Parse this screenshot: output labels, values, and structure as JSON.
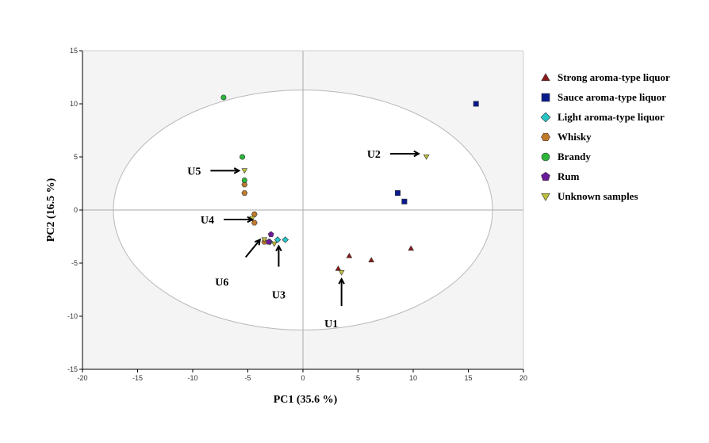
{
  "chart_data": {
    "type": "scatter",
    "title": "",
    "xlabel": "PC1 (35.6 %)",
    "ylabel": "PC2 (16.5 %)",
    "xlim": [
      -20,
      20
    ],
    "ylim": [
      -15,
      15
    ],
    "x_ticks": [
      -20,
      -15,
      -10,
      -5,
      0,
      5,
      10,
      15,
      20
    ],
    "y_ticks": [
      -15,
      -10,
      -5,
      0,
      5,
      10,
      15
    ],
    "grid": false,
    "legend_position": "right",
    "confidence_ellipse": {
      "center": [
        0,
        0
      ],
      "radii": [
        17.2,
        11.3
      ]
    },
    "series": [
      {
        "name": "Strong aroma-type liquor",
        "marker": "triangle-up",
        "color": "#8b1a1a",
        "points": [
          [
            3.2,
            -5.5
          ],
          [
            4.2,
            -4.3
          ],
          [
            6.2,
            -4.7
          ],
          [
            9.8,
            -3.6
          ]
        ]
      },
      {
        "name": "Sauce aroma-type liquor",
        "marker": "square",
        "color": "#0a1a8c",
        "points": [
          [
            15.7,
            10.0
          ],
          [
            8.6,
            1.6
          ],
          [
            9.2,
            0.8
          ]
        ]
      },
      {
        "name": "Light aroma-type liquor",
        "marker": "diamond",
        "color": "#27c4c4",
        "points": [
          [
            -3.0,
            -3.0
          ],
          [
            -2.3,
            -2.8
          ],
          [
            -1.6,
            -2.8
          ]
        ]
      },
      {
        "name": "Whisky",
        "marker": "hexagon",
        "color": "#c07a2c",
        "points": [
          [
            -5.3,
            2.4
          ],
          [
            -5.3,
            1.6
          ],
          [
            -4.4,
            -0.4
          ],
          [
            -4.4,
            -1.2
          ],
          [
            -3.5,
            -3.0
          ]
        ]
      },
      {
        "name": "Brandy",
        "marker": "circle",
        "color": "#2cb53a",
        "points": [
          [
            -7.2,
            10.6
          ],
          [
            -5.5,
            5.0
          ],
          [
            -5.3,
            2.8
          ]
        ]
      },
      {
        "name": "Rum",
        "marker": "pentagon",
        "color": "#6a1a9a",
        "points": [
          [
            -2.9,
            -2.3
          ],
          [
            -3.1,
            -3.0
          ]
        ]
      },
      {
        "name": "Unknown samples",
        "marker": "triangle-down",
        "color": "#bfbf3a",
        "points": [
          [
            3.5,
            -5.9
          ],
          [
            11.2,
            5.0
          ],
          [
            -2.6,
            -3.2
          ],
          [
            -4.6,
            -0.8
          ],
          [
            -5.3,
            3.7
          ],
          [
            -3.5,
            -2.8
          ]
        ]
      }
    ],
    "annotations": [
      {
        "label": "U1",
        "target": [
          3.5,
          -6.5
        ]
      },
      {
        "label": "U2",
        "target": [
          10.5,
          5.3
        ]
      },
      {
        "label": "U3",
        "target": [
          -2.2,
          -3.4
        ]
      },
      {
        "label": "U4",
        "target": [
          -4.6,
          -0.9
        ]
      },
      {
        "label": "U5",
        "target": [
          -5.8,
          3.7
        ]
      },
      {
        "label": "U6",
        "target": [
          -3.9,
          -2.8
        ]
      }
    ]
  }
}
